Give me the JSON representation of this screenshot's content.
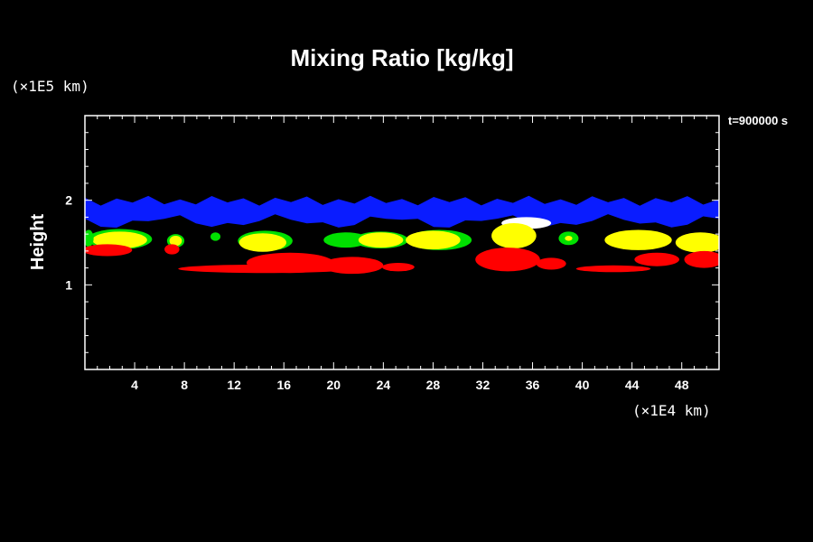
{
  "chart_data": {
    "type": "heatmap",
    "title": "Mixing Ratio [kg/kg]",
    "ylabel": "Height",
    "xlabel": "",
    "x_unit_label": "(×1E4 km)",
    "y_unit_label": "(×1E5 km)",
    "time_label": "t=900000 s",
    "xlim": [
      0,
      51
    ],
    "ylim": [
      0,
      3
    ],
    "x_ticks": [
      4,
      8,
      12,
      16,
      20,
      24,
      28,
      32,
      36,
      40,
      44,
      48
    ],
    "y_ticks": [
      1,
      2
    ],
    "x_minor_step": 1,
    "y_minor_step": 0.2,
    "grid": false,
    "legend": "none",
    "colors": {
      "background": "#000000",
      "axes": "#ffffff",
      "blue": "#0a1cff",
      "green": "#00e000",
      "yellow": "#ffff00",
      "red": "#ff0000",
      "white": "#ffffff"
    },
    "regions": [
      {
        "color": "blue",
        "shape": "band",
        "x": [
          0,
          51
        ],
        "y": [
          1.75,
          2.0
        ]
      },
      {
        "color": "white",
        "shape": "blob",
        "cx": 35.5,
        "cy": 1.73,
        "rx": 2.0,
        "ry": 0.07
      },
      {
        "color": "green",
        "shape": "blob",
        "cx": 2.8,
        "cy": 1.54,
        "rx": 2.6,
        "ry": 0.12
      },
      {
        "color": "yellow",
        "shape": "blob",
        "cx": 2.8,
        "cy": 1.53,
        "rx": 2.2,
        "ry": 0.1
      },
      {
        "color": "green",
        "shape": "blob",
        "cx": 7.3,
        "cy": 1.52,
        "rx": 0.7,
        "ry": 0.08
      },
      {
        "color": "yellow",
        "shape": "blob",
        "cx": 7.3,
        "cy": 1.52,
        "rx": 0.5,
        "ry": 0.06
      },
      {
        "color": "green",
        "shape": "blob",
        "cx": 10.5,
        "cy": 1.57,
        "rx": 0.4,
        "ry": 0.05
      },
      {
        "color": "green",
        "shape": "blob",
        "cx": 14.5,
        "cy": 1.52,
        "rx": 2.2,
        "ry": 0.12
      },
      {
        "color": "yellow",
        "shape": "blob",
        "cx": 14.3,
        "cy": 1.5,
        "rx": 1.9,
        "ry": 0.11
      },
      {
        "color": "green",
        "shape": "blob",
        "cx": 21.0,
        "cy": 1.53,
        "rx": 1.8,
        "ry": 0.09
      },
      {
        "color": "green",
        "shape": "blob",
        "cx": 23.8,
        "cy": 1.53,
        "rx": 2.2,
        "ry": 0.1
      },
      {
        "color": "yellow",
        "shape": "blob",
        "cx": 23.8,
        "cy": 1.53,
        "rx": 1.8,
        "ry": 0.09
      },
      {
        "color": "green",
        "shape": "blob",
        "cx": 28.5,
        "cy": 1.53,
        "rx": 2.6,
        "ry": 0.12
      },
      {
        "color": "yellow",
        "shape": "blob",
        "cx": 28.0,
        "cy": 1.53,
        "rx": 2.2,
        "ry": 0.11
      },
      {
        "color": "yellow",
        "shape": "blob",
        "cx": 34.5,
        "cy": 1.58,
        "rx": 1.8,
        "ry": 0.15
      },
      {
        "color": "green",
        "shape": "blob",
        "cx": 38.9,
        "cy": 1.55,
        "rx": 0.8,
        "ry": 0.08
      },
      {
        "color": "yellow",
        "shape": "blob",
        "cx": 38.9,
        "cy": 1.55,
        "rx": 0.3,
        "ry": 0.03
      },
      {
        "color": "yellow",
        "shape": "blob",
        "cx": 44.5,
        "cy": 1.53,
        "rx": 2.7,
        "ry": 0.12
      },
      {
        "color": "yellow",
        "shape": "blob",
        "cx": 49.5,
        "cy": 1.5,
        "rx": 2.0,
        "ry": 0.12
      },
      {
        "color": "green",
        "shape": "blob",
        "cx": 0.3,
        "cy": 1.55,
        "rx": 0.4,
        "ry": 0.1
      },
      {
        "color": "red",
        "shape": "blob",
        "cx": 1.8,
        "cy": 1.41,
        "rx": 2.0,
        "ry": 0.07
      },
      {
        "color": "red",
        "shape": "blob",
        "cx": 7.0,
        "cy": 1.42,
        "rx": 0.6,
        "ry": 0.06
      },
      {
        "color": "red",
        "shape": "blob",
        "cx": 14.5,
        "cy": 1.19,
        "rx": 7.0,
        "ry": 0.05
      },
      {
        "color": "red",
        "shape": "blob",
        "cx": 16.5,
        "cy": 1.26,
        "rx": 3.5,
        "ry": 0.12
      },
      {
        "color": "red",
        "shape": "blob",
        "cx": 21.5,
        "cy": 1.23,
        "rx": 2.5,
        "ry": 0.1
      },
      {
        "color": "red",
        "shape": "blob",
        "cx": 25.2,
        "cy": 1.21,
        "rx": 1.3,
        "ry": 0.05
      },
      {
        "color": "red",
        "shape": "blob",
        "cx": 34.0,
        "cy": 1.3,
        "rx": 2.6,
        "ry": 0.14
      },
      {
        "color": "red",
        "shape": "blob",
        "cx": 37.5,
        "cy": 1.25,
        "rx": 1.2,
        "ry": 0.07
      },
      {
        "color": "red",
        "shape": "blob",
        "cx": 42.5,
        "cy": 1.19,
        "rx": 3.0,
        "ry": 0.04
      },
      {
        "color": "red",
        "shape": "blob",
        "cx": 46.0,
        "cy": 1.3,
        "rx": 1.8,
        "ry": 0.08
      },
      {
        "color": "red",
        "shape": "blob",
        "cx": 49.8,
        "cy": 1.3,
        "rx": 1.6,
        "ry": 0.1
      }
    ]
  }
}
